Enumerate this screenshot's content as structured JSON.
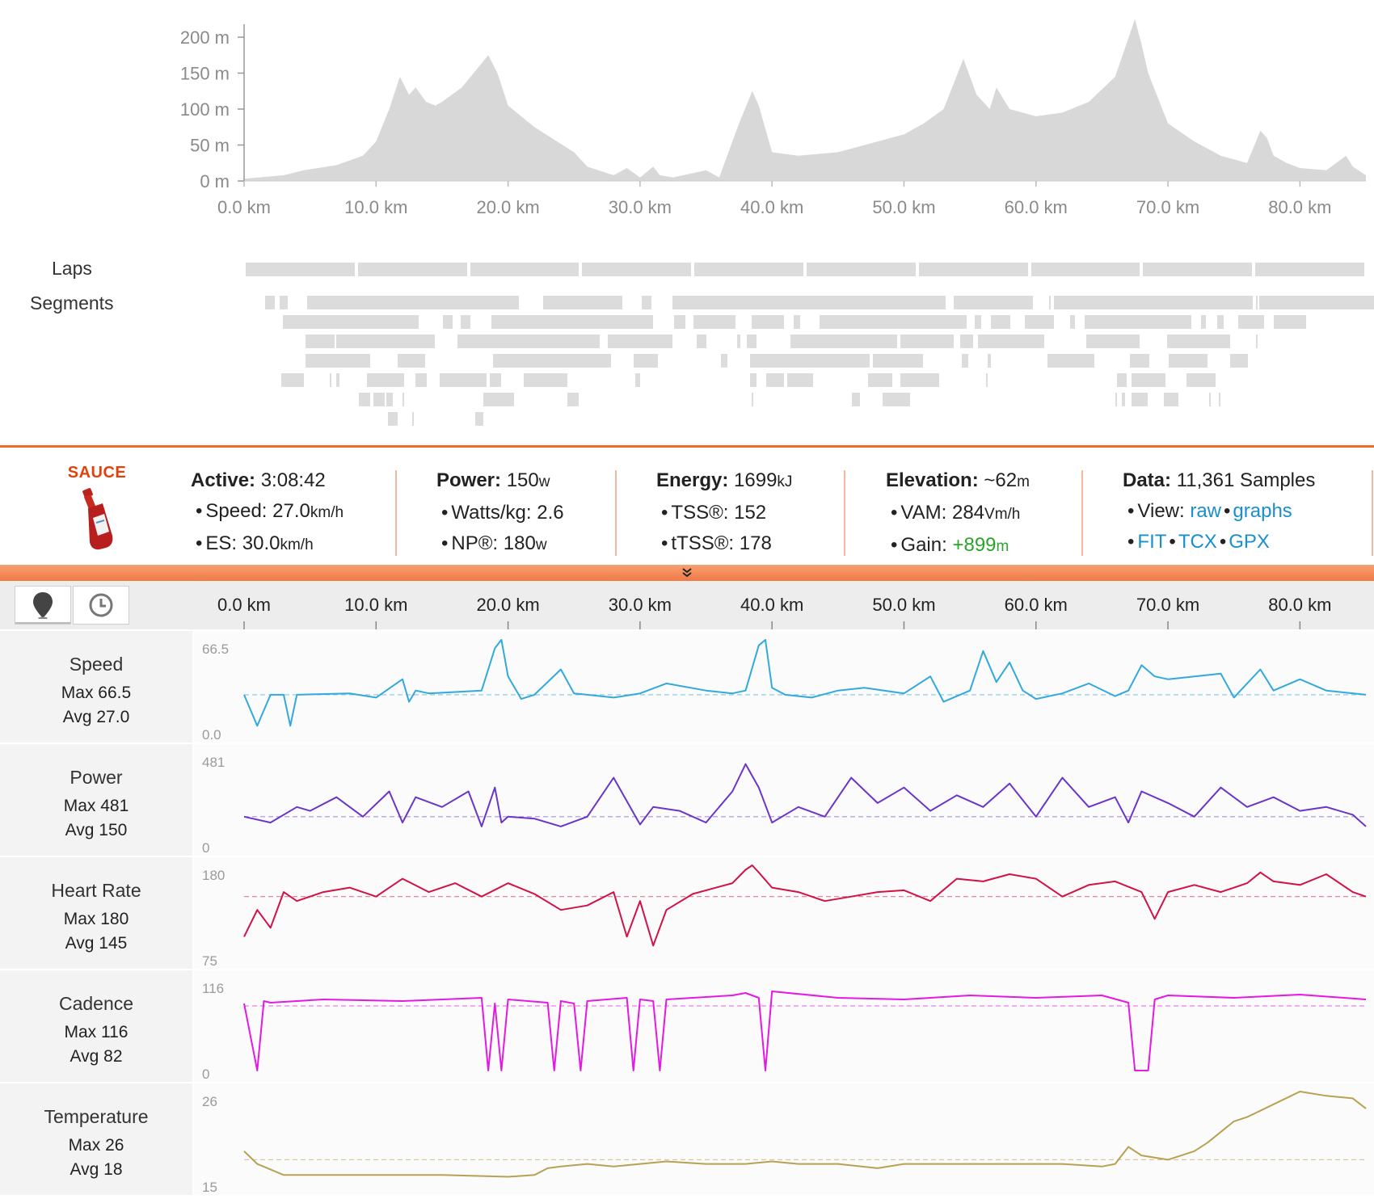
{
  "elevation": {
    "y_ticks": [
      "200 m",
      "150 m",
      "100 m",
      "50 m",
      "0 m"
    ],
    "x_ticks": [
      "0.0 km",
      "10.0 km",
      "20.0 km",
      "30.0 km",
      "40.0 km",
      "50.0 km",
      "60.0 km",
      "70.0 km",
      "80.0 km"
    ],
    "chart_data": {
      "type": "area",
      "x_unit": "km",
      "y_unit": "m",
      "ylim": [
        0,
        230
      ],
      "xlim": [
        0,
        85
      ],
      "x": [
        0,
        3,
        4.5,
        7,
        9,
        10,
        11,
        11.8,
        12.5,
        13,
        13.8,
        14.5,
        15,
        16.5,
        18.5,
        19.2,
        20,
        22,
        25,
        26,
        28,
        29,
        30,
        31,
        31.5,
        32.5,
        35,
        36,
        37.5,
        38.5,
        39,
        40,
        42,
        45,
        48,
        50,
        51.5,
        53,
        54.5,
        55.5,
        56.5,
        57,
        58,
        60,
        62,
        64,
        66,
        67.5,
        68,
        68.5,
        70,
        72,
        74,
        76,
        77,
        77.5,
        78,
        79,
        80,
        82,
        83.5,
        84,
        85
      ],
      "y": [
        3,
        8,
        15,
        22,
        35,
        55,
        100,
        145,
        120,
        130,
        110,
        105,
        110,
        130,
        175,
        150,
        105,
        75,
        40,
        20,
        8,
        18,
        5,
        20,
        8,
        5,
        15,
        5,
        80,
        125,
        105,
        40,
        35,
        40,
        55,
        65,
        80,
        100,
        170,
        120,
        100,
        130,
        100,
        90,
        95,
        110,
        145,
        225,
        190,
        150,
        80,
        55,
        35,
        25,
        70,
        60,
        35,
        25,
        18,
        15,
        35,
        20,
        8
      ]
    }
  },
  "laps": {
    "label": "Laps",
    "count": 10
  },
  "segments": {
    "label": "Segments"
  },
  "summary": {
    "logo_text": "SAUCE",
    "active": {
      "label": "Active:",
      "value": "3:08:42",
      "speed_label": "Speed:",
      "speed_value": "27.0",
      "speed_unit": "km/h",
      "es_label": "ES:",
      "es_value": "30.0",
      "es_unit": "km/h"
    },
    "power": {
      "label": "Power:",
      "value": "150",
      "unit": "w",
      "wkg_label": "Watts/kg:",
      "wkg_value": "2.6",
      "np_label": "NP®:",
      "np_value": "180",
      "np_unit": "w"
    },
    "energy": {
      "label": "Energy:",
      "value": "1699",
      "unit": "kJ",
      "tss_label": "TSS®:",
      "tss_value": "152",
      "ttss_label": "tTSS®:",
      "ttss_value": "178"
    },
    "elevation": {
      "label": "Elevation:",
      "value": "~62",
      "unit": "m",
      "vam_label": "VAM:",
      "vam_value": "284",
      "vam_unit": "Vm/h",
      "gain_label": "Gain:",
      "gain_value": "+899",
      "gain_unit": "m"
    },
    "data": {
      "label": "Data:",
      "value": "11,361 Samples",
      "view_label": "View:",
      "raw": "raw",
      "graphs": "graphs",
      "fit": "FIT",
      "tcx": "TCX",
      "gpx": "GPX"
    }
  },
  "expand_icon": "double-chevron-down-icon",
  "toolbar": {
    "buttons": [
      {
        "icon": "map-pin-icon"
      },
      {
        "icon": "clock-icon"
      }
    ],
    "axis_ticks": [
      "0.0 km",
      "10.0 km",
      "20.0 km",
      "30.0 km",
      "40.0 km",
      "50.0 km",
      "60.0 km",
      "70.0 km",
      "80.0 km"
    ]
  },
  "streams": [
    {
      "name": "Speed",
      "max_text": "Max 66.5",
      "avg_text": "Avg 27.0",
      "y_max": "66.5",
      "y_min": "0.0",
      "max": 66.5,
      "min": 0,
      "avg": 27.0,
      "color": "#32a9dc",
      "chart_data": {
        "type": "line",
        "x": [
          0,
          1,
          2,
          3,
          3.5,
          4,
          8,
          10,
          12,
          12.5,
          13,
          14,
          18,
          19,
          19.5,
          20,
          21,
          22,
          24,
          25,
          26,
          28,
          30,
          32,
          35,
          37,
          38,
          39,
          39.5,
          40,
          41,
          43,
          45,
          47,
          50,
          52,
          53,
          55,
          56,
          57,
          58,
          59,
          60,
          62,
          64,
          66,
          67,
          68,
          69,
          70,
          72,
          74,
          75,
          76,
          77,
          78,
          80,
          82,
          85
        ],
        "y": [
          27,
          5,
          27,
          27,
          5,
          27,
          28,
          25,
          38,
          22,
          30,
          28,
          30,
          60,
          66,
          40,
          24,
          27,
          45,
          28,
          27,
          25,
          28,
          35,
          30,
          28,
          30,
          62,
          66,
          32,
          27,
          25,
          30,
          32,
          28,
          40,
          22,
          30,
          58,
          36,
          50,
          30,
          24,
          28,
          35,
          26,
          30,
          48,
          40,
          38,
          40,
          42,
          25,
          35,
          45,
          30,
          38,
          30,
          27
        ]
      }
    },
    {
      "name": "Power",
      "max_text": "Max 481",
      "avg_text": "Avg 150",
      "y_max": "481",
      "y_min": "0",
      "max": 481,
      "min": 0,
      "avg": 150,
      "color": "#6a35c8",
      "chart_data": {
        "type": "line",
        "x": [
          0,
          2,
          4,
          5,
          7,
          9,
          11,
          12,
          13,
          15,
          17,
          18,
          19,
          19.5,
          20,
          22,
          24,
          26,
          28,
          30,
          31,
          33,
          35,
          37,
          38,
          39,
          40,
          42,
          44,
          46,
          48,
          50,
          52,
          54,
          56,
          58,
          60,
          62,
          64,
          66,
          67,
          68,
          70,
          72,
          74,
          76,
          78,
          80,
          82,
          84,
          85
        ],
        "y": [
          150,
          120,
          200,
          180,
          250,
          150,
          280,
          120,
          250,
          200,
          280,
          100,
          300,
          120,
          150,
          140,
          100,
          150,
          350,
          110,
          200,
          180,
          120,
          280,
          420,
          300,
          120,
          200,
          150,
          350,
          220,
          300,
          180,
          260,
          200,
          320,
          150,
          350,
          200,
          250,
          120,
          280,
          220,
          150,
          300,
          200,
          250,
          180,
          200,
          160,
          100
        ]
      }
    },
    {
      "name": "Heart Rate",
      "max_text": "Max 180",
      "avg_text": "Avg 145",
      "y_max": "180",
      "y_min": "75",
      "max": 180,
      "min": 75,
      "avg": 145,
      "color": "#d21147",
      "chart_data": {
        "type": "line",
        "x": [
          0,
          1,
          2,
          3,
          4,
          6,
          8,
          10,
          12,
          14,
          16,
          18,
          20,
          22,
          24,
          26,
          28,
          29,
          30,
          31,
          32,
          34,
          37,
          38,
          38.5,
          39,
          40,
          42,
          44,
          46,
          48,
          50,
          52,
          54,
          56,
          58,
          60,
          62,
          64,
          66,
          68,
          69,
          70,
          72,
          74,
          76,
          77,
          78,
          80,
          82,
          84,
          85
        ],
        "y": [
          100,
          130,
          110,
          150,
          140,
          150,
          155,
          145,
          165,
          150,
          160,
          145,
          160,
          148,
          130,
          135,
          150,
          100,
          140,
          90,
          130,
          148,
          160,
          175,
          180,
          172,
          155,
          150,
          140,
          145,
          150,
          152,
          140,
          165,
          162,
          170,
          165,
          145,
          158,
          162,
          150,
          120,
          150,
          158,
          150,
          160,
          172,
          162,
          158,
          170,
          150,
          145
        ]
      }
    },
    {
      "name": "Cadence",
      "max_text": "Max 116",
      "avg_text": "Avg 82",
      "y_max": "116",
      "y_min": "0",
      "max": 116,
      "min": 0,
      "avg": 82,
      "color": "#e419e4",
      "chart_data": {
        "type": "line",
        "x": [
          0,
          1,
          1.5,
          2,
          6,
          12,
          18,
          18.5,
          19,
          19.5,
          20,
          23,
          23.5,
          24,
          25,
          25.5,
          26,
          29,
          29.5,
          30,
          31,
          31.5,
          32,
          34,
          37,
          38,
          39,
          39.5,
          40,
          45,
          50,
          55,
          60,
          65,
          67,
          67.5,
          68,
          68.5,
          69,
          70,
          75,
          80,
          85
        ],
        "y": [
          85,
          2,
          88,
          86,
          90,
          88,
          92,
          2,
          85,
          2,
          90,
          86,
          2,
          88,
          85,
          2,
          88,
          92,
          2,
          90,
          88,
          2,
          90,
          92,
          95,
          98,
          92,
          2,
          100,
          92,
          90,
          95,
          92,
          95,
          86,
          2,
          2,
          2,
          90,
          95,
          92,
          96,
          90
        ]
      }
    },
    {
      "name": "Temperature",
      "max_text": "Max 26",
      "avg_text": "Avg 18",
      "y_max": "26",
      "y_min": "15",
      "max": 26,
      "min": 15,
      "avg": 18,
      "color": "#b8a152",
      "chart_data": {
        "type": "line",
        "x": [
          0,
          1,
          3,
          8,
          15,
          20,
          22,
          23,
          24,
          26,
          28,
          30,
          32,
          35,
          38,
          40,
          42,
          45,
          48,
          50,
          55,
          60,
          62,
          65,
          66,
          67,
          68,
          70,
          72,
          73,
          75,
          76,
          78,
          80,
          82,
          84,
          85
        ],
        "y": [
          19,
          17.5,
          16.2,
          16.2,
          16.2,
          16,
          16.2,
          17,
          17.2,
          17.5,
          17.2,
          17.5,
          17.8,
          17.5,
          17.5,
          17.8,
          17.5,
          17.5,
          17,
          17.5,
          17.5,
          17.5,
          17.5,
          17.2,
          17.5,
          19.5,
          18.5,
          18,
          19,
          20,
          22.5,
          23,
          24.5,
          26,
          25.5,
          25.2,
          24
        ]
      }
    }
  ]
}
